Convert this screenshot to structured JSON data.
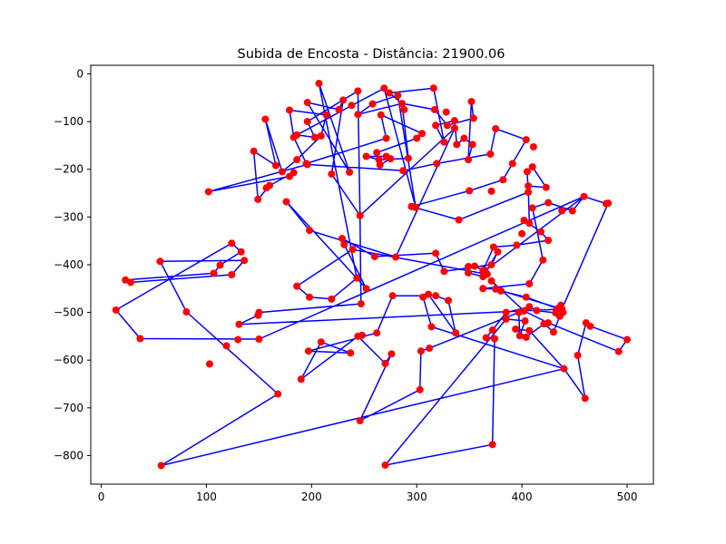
{
  "chart_data": {
    "type": "scatter",
    "title": "Subida de Encosta - Distância: 21900.06",
    "xlabel": "",
    "ylabel": "",
    "xlim": [
      -10,
      525
    ],
    "ylim": [
      -860,
      18
    ],
    "xticks": [
      0,
      100,
      200,
      300,
      400,
      500
    ],
    "yticks": [
      0,
      -100,
      -200,
      -300,
      -400,
      -500,
      -600,
      -700,
      -800
    ],
    "grid": false,
    "colors": {
      "points": "#ff0000",
      "path": "#0000ff"
    },
    "points": [
      [
        207,
        -20
      ],
      [
        196,
        -60
      ],
      [
        230,
        -55
      ],
      [
        244,
        -36
      ],
      [
        269,
        -30
      ],
      [
        282,
        -45
      ],
      [
        316,
        -30
      ],
      [
        352,
        -58
      ],
      [
        354,
        -93
      ],
      [
        375,
        -115
      ],
      [
        404,
        -138
      ],
      [
        411,
        -153
      ],
      [
        391,
        -188
      ],
      [
        405,
        -205
      ],
      [
        410,
        -195
      ],
      [
        423,
        -238
      ],
      [
        406,
        -248
      ],
      [
        406,
        -235
      ],
      [
        382,
        -222
      ],
      [
        370,
        -168
      ],
      [
        349,
        -180
      ],
      [
        345,
        -135
      ],
      [
        353,
        -148
      ],
      [
        338,
        -148
      ],
      [
        336,
        -98
      ],
      [
        336,
        -114
      ],
      [
        326,
        -143
      ],
      [
        318,
        -108
      ],
      [
        317,
        -75
      ],
      [
        328,
        -80
      ],
      [
        329,
        -108
      ],
      [
        288,
        -75
      ],
      [
        286,
        -62
      ],
      [
        274,
        -40
      ],
      [
        258,
        -63
      ],
      [
        244,
        -85
      ],
      [
        226,
        -75
      ],
      [
        238,
        -66
      ],
      [
        214,
        -86
      ],
      [
        196,
        -100
      ],
      [
        203,
        -133
      ],
      [
        186,
        -128
      ],
      [
        183,
        -133
      ],
      [
        179,
        -76
      ],
      [
        156,
        -95
      ],
      [
        145,
        -162
      ],
      [
        166,
        -192
      ],
      [
        172,
        -205
      ],
      [
        179,
        -215
      ],
      [
        186,
        -180
      ],
      [
        195,
        -188
      ],
      [
        209,
        -130
      ],
      [
        196,
        -190
      ],
      [
        236,
        -206
      ],
      [
        219,
        -210
      ],
      [
        252,
        -173
      ],
      [
        264,
        -180
      ],
      [
        265,
        -191
      ],
      [
        271,
        -173
      ],
      [
        275,
        -178
      ],
      [
        262,
        -165
      ],
      [
        271,
        -135
      ],
      [
        266,
        -86
      ],
      [
        292,
        -177
      ],
      [
        287,
        -203
      ],
      [
        300,
        -135
      ],
      [
        305,
        -125
      ],
      [
        319,
        -188
      ],
      [
        350,
        -245
      ],
      [
        371,
        -246
      ],
      [
        340,
        -306
      ],
      [
        299,
        -280
      ],
      [
        295,
        -278
      ],
      [
        246,
        -297
      ],
      [
        260,
        -383
      ],
      [
        252,
        -450
      ],
      [
        229,
        -345
      ],
      [
        231,
        -358
      ],
      [
        198,
        -328
      ],
      [
        176,
        -268
      ],
      [
        160,
        -234
      ],
      [
        149,
        -263
      ],
      [
        102,
        -247
      ],
      [
        183,
        -207
      ],
      [
        157,
        -239
      ],
      [
        133,
        -373
      ],
      [
        136,
        -391
      ],
      [
        124,
        -355
      ],
      [
        113,
        -401
      ],
      [
        107,
        -418
      ],
      [
        124,
        -421
      ],
      [
        168,
        -671
      ],
      [
        81,
        -499
      ],
      [
        56,
        -393
      ],
      [
        28,
        -437
      ],
      [
        23,
        -432
      ],
      [
        14,
        -495
      ],
      [
        37,
        -555
      ],
      [
        149,
        -506
      ],
      [
        150,
        -500
      ],
      [
        131,
        -525
      ],
      [
        197,
        -581
      ],
      [
        190,
        -640
      ],
      [
        209,
        -562
      ],
      [
        237,
        -585
      ],
      [
        244,
        -550
      ],
      [
        246,
        -727
      ],
      [
        270,
        -820
      ],
      [
        270,
        -607
      ],
      [
        276,
        -587
      ],
      [
        304,
        -581
      ],
      [
        303,
        -662
      ],
      [
        312,
        -575
      ],
      [
        366,
        -553
      ],
      [
        374,
        -555
      ],
      [
        372,
        -537
      ],
      [
        385,
        -500
      ],
      [
        385,
        -514
      ],
      [
        394,
        -535
      ],
      [
        403,
        -518
      ],
      [
        404,
        -552
      ],
      [
        407,
        -538
      ],
      [
        421,
        -524
      ],
      [
        425,
        -522
      ],
      [
        430,
        -541
      ],
      [
        436,
        -508
      ],
      [
        439,
        -500
      ],
      [
        437,
        -485
      ],
      [
        438,
        -493
      ],
      [
        434,
        -492
      ],
      [
        432,
        -501
      ],
      [
        414,
        -496
      ],
      [
        407,
        -488
      ],
      [
        404,
        -468
      ],
      [
        380,
        -455
      ],
      [
        371,
        -434
      ],
      [
        402,
        -497
      ],
      [
        398,
        -549
      ],
      [
        397,
        -500
      ],
      [
        440,
        -618
      ],
      [
        453,
        -590
      ],
      [
        460,
        -680
      ],
      [
        461,
        -522
      ],
      [
        465,
        -529
      ],
      [
        492,
        -582
      ],
      [
        500,
        -557
      ],
      [
        482,
        -271
      ],
      [
        480,
        -272
      ],
      [
        459,
        -257
      ],
      [
        448,
        -287
      ],
      [
        425,
        -349
      ],
      [
        418,
        -331
      ],
      [
        407,
        -313
      ],
      [
        402,
        -307
      ],
      [
        400,
        -335
      ],
      [
        395,
        -359
      ],
      [
        373,
        -363
      ],
      [
        377,
        -373
      ],
      [
        371,
        -400
      ],
      [
        363,
        -412
      ],
      [
        355,
        -403
      ],
      [
        349,
        -404
      ],
      [
        349,
        -417
      ],
      [
        363,
        -425
      ],
      [
        363,
        -450
      ],
      [
        375,
        -451
      ],
      [
        372,
        -777
      ],
      [
        318,
        -376
      ],
      [
        326,
        -414
      ],
      [
        318,
        -465
      ],
      [
        330,
        -475
      ],
      [
        337,
        -543
      ],
      [
        314,
        -530
      ],
      [
        311,
        -462
      ],
      [
        306,
        -468
      ],
      [
        280,
        -384
      ],
      [
        277,
        -465
      ],
      [
        262,
        -543
      ],
      [
        247,
        -482
      ],
      [
        248,
        -548
      ],
      [
        239,
        -368
      ],
      [
        186,
        -445
      ],
      [
        198,
        -468
      ],
      [
        219,
        -472
      ],
      [
        243,
        -428
      ],
      [
        57,
        -821
      ],
      [
        150,
        -556
      ],
      [
        130,
        -557
      ],
      [
        119,
        -570
      ],
      [
        103,
        -608
      ],
      [
        407,
        -440
      ],
      [
        420,
        -390
      ],
      [
        410,
        -281
      ],
      [
        425,
        -270
      ],
      [
        438,
        -287
      ],
      [
        365,
        -412
      ],
      [
        367,
        -420
      ]
    ],
    "path": [
      [
        207,
        -20
      ],
      [
        236,
        -206
      ],
      [
        196,
        -60
      ],
      [
        226,
        -75
      ],
      [
        230,
        -55
      ],
      [
        219,
        -210
      ],
      [
        246,
        -297
      ],
      [
        244,
        -36
      ],
      [
        196,
        -100
      ],
      [
        203,
        -133
      ],
      [
        186,
        -128
      ],
      [
        269,
        -30
      ],
      [
        299,
        -280
      ],
      [
        282,
        -45
      ],
      [
        258,
        -63
      ],
      [
        244,
        -85
      ],
      [
        286,
        -62
      ],
      [
        274,
        -40
      ],
      [
        316,
        -30
      ],
      [
        326,
        -143
      ],
      [
        318,
        -108
      ],
      [
        336,
        -98
      ],
      [
        338,
        -148
      ],
      [
        345,
        -135
      ],
      [
        353,
        -148
      ],
      [
        349,
        -180
      ],
      [
        352,
        -58
      ],
      [
        354,
        -93
      ],
      [
        329,
        -108
      ],
      [
        317,
        -75
      ],
      [
        286,
        -62
      ],
      [
        292,
        -177
      ],
      [
        264,
        -180
      ],
      [
        252,
        -173
      ],
      [
        271,
        -173
      ],
      [
        275,
        -178
      ],
      [
        265,
        -191
      ],
      [
        262,
        -165
      ],
      [
        300,
        -135
      ],
      [
        305,
        -125
      ],
      [
        266,
        -86
      ],
      [
        271,
        -135
      ],
      [
        195,
        -188
      ],
      [
        183,
        -133
      ],
      [
        179,
        -76
      ],
      [
        214,
        -86
      ],
      [
        209,
        -130
      ],
      [
        186,
        -180
      ],
      [
        172,
        -205
      ],
      [
        156,
        -95
      ],
      [
        166,
        -192
      ],
      [
        145,
        -162
      ],
      [
        149,
        -263
      ],
      [
        160,
        -234
      ],
      [
        183,
        -207
      ],
      [
        179,
        -215
      ],
      [
        102,
        -247
      ],
      [
        196,
        -190
      ],
      [
        287,
        -203
      ],
      [
        319,
        -188
      ],
      [
        370,
        -168
      ],
      [
        375,
        -115
      ],
      [
        404,
        -138
      ],
      [
        391,
        -188
      ],
      [
        382,
        -222
      ],
      [
        350,
        -245
      ],
      [
        295,
        -278
      ],
      [
        340,
        -306
      ],
      [
        406,
        -248
      ],
      [
        405,
        -205
      ],
      [
        410,
        -195
      ],
      [
        423,
        -238
      ],
      [
        406,
        -235
      ],
      [
        407,
        -313
      ],
      [
        402,
        -307
      ],
      [
        418,
        -331
      ],
      [
        425,
        -349
      ],
      [
        395,
        -359
      ],
      [
        373,
        -363
      ],
      [
        363,
        -412
      ],
      [
        355,
        -403
      ],
      [
        349,
        -404
      ],
      [
        349,
        -417
      ],
      [
        363,
        -425
      ],
      [
        377,
        -373
      ],
      [
        371,
        -400
      ],
      [
        326,
        -414
      ],
      [
        318,
        -376
      ],
      [
        260,
        -383
      ],
      [
        229,
        -345
      ],
      [
        231,
        -358
      ],
      [
        252,
        -450
      ],
      [
        176,
        -268
      ],
      [
        198,
        -328
      ],
      [
        280,
        -384
      ],
      [
        336,
        -114
      ],
      [
        246,
        -297
      ],
      [
        247,
        -482
      ],
      [
        150,
        -500
      ],
      [
        149,
        -506
      ],
      [
        131,
        -525
      ],
      [
        438,
        -493
      ],
      [
        434,
        -492
      ],
      [
        404,
        -468
      ],
      [
        380,
        -455
      ],
      [
        371,
        -434
      ],
      [
        402,
        -497
      ],
      [
        425,
        -522
      ],
      [
        492,
        -582
      ],
      [
        500,
        -557
      ],
      [
        465,
        -529
      ],
      [
        461,
        -522
      ],
      [
        453,
        -590
      ],
      [
        460,
        -680
      ],
      [
        440,
        -618
      ],
      [
        407,
        -538
      ],
      [
        394,
        -535
      ],
      [
        404,
        -552
      ],
      [
        421,
        -524
      ],
      [
        430,
        -541
      ],
      [
        436,
        -508
      ],
      [
        439,
        -500
      ],
      [
        437,
        -485
      ],
      [
        432,
        -501
      ],
      [
        414,
        -496
      ],
      [
        407,
        -488
      ],
      [
        385,
        -500
      ],
      [
        372,
        -537
      ],
      [
        366,
        -553
      ],
      [
        374,
        -555
      ],
      [
        372,
        -777
      ],
      [
        270,
        -820
      ],
      [
        385,
        -514
      ],
      [
        403,
        -518
      ],
      [
        398,
        -549
      ],
      [
        397,
        -500
      ],
      [
        312,
        -575
      ],
      [
        304,
        -581
      ],
      [
        303,
        -662
      ],
      [
        246,
        -727
      ],
      [
        276,
        -587
      ],
      [
        270,
        -607
      ],
      [
        244,
        -550
      ],
      [
        190,
        -640
      ],
      [
        209,
        -562
      ],
      [
        237,
        -585
      ],
      [
        197,
        -581
      ],
      [
        262,
        -543
      ],
      [
        277,
        -465
      ],
      [
        318,
        -465
      ],
      [
        330,
        -475
      ],
      [
        337,
        -543
      ],
      [
        311,
        -462
      ],
      [
        306,
        -468
      ],
      [
        314,
        -530
      ],
      [
        440,
        -618
      ],
      [
        57,
        -821
      ],
      [
        168,
        -671
      ],
      [
        81,
        -499
      ],
      [
        56,
        -393
      ],
      [
        136,
        -391
      ],
      [
        124,
        -421
      ],
      [
        28,
        -437
      ],
      [
        23,
        -432
      ],
      [
        107,
        -418
      ],
      [
        113,
        -401
      ],
      [
        133,
        -373
      ],
      [
        124,
        -355
      ],
      [
        14,
        -495
      ],
      [
        37,
        -555
      ],
      [
        150,
        -556
      ],
      [
        459,
        -257
      ],
      [
        448,
        -287
      ],
      [
        425,
        -270
      ],
      [
        410,
        -281
      ],
      [
        420,
        -390
      ],
      [
        407,
        -440
      ],
      [
        363,
        -450
      ],
      [
        375,
        -451
      ],
      [
        438,
        -493
      ],
      [
        482,
        -271
      ],
      [
        480,
        -272
      ],
      [
        459,
        -257
      ],
      [
        365,
        -412
      ],
      [
        367,
        -420
      ],
      [
        239,
        -368
      ],
      [
        186,
        -445
      ],
      [
        198,
        -468
      ],
      [
        219,
        -472
      ],
      [
        243,
        -428
      ],
      [
        207,
        -20
      ]
    ]
  }
}
